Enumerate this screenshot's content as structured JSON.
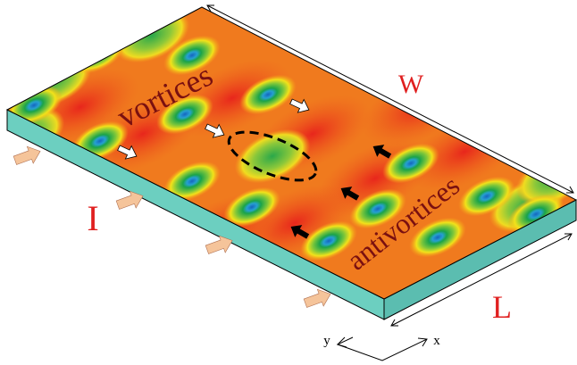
{
  "annotations": {
    "vortices": "vortices",
    "antivortices": "antivortices"
  },
  "dimensions": {
    "width": "W",
    "current": "I",
    "length": "L"
  },
  "axes": {
    "y": "y",
    "x": "x"
  }
}
